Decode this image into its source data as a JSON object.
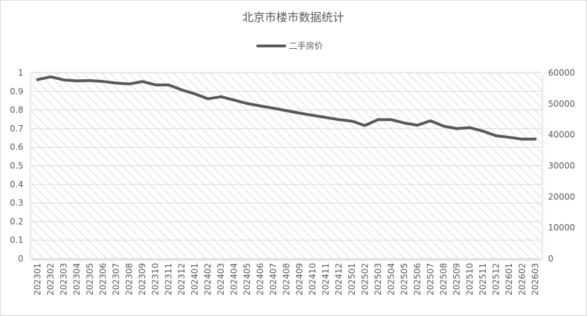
{
  "chart_data": {
    "type": "line",
    "title": "北京市楼市数据统计",
    "legend": {
      "position": "top",
      "entries": [
        "二手房价"
      ]
    },
    "grid": true,
    "x": [
      "202301",
      "202302",
      "202303",
      "202304",
      "202305",
      "202306",
      "202307",
      "202308",
      "202309",
      "202310",
      "202311",
      "202312",
      "202401",
      "202402",
      "202403",
      "202404",
      "202405",
      "202406",
      "202407",
      "202408",
      "202409",
      "202410",
      "202411",
      "202412",
      "202501",
      "202502",
      "202503",
      "202504",
      "202505",
      "202506",
      "202507",
      "202508",
      "202509",
      "202510",
      "202511",
      "202512",
      "202601",
      "202602",
      "202603"
    ],
    "y_left": {
      "ticks": [
        "0",
        "0.1",
        "0.2",
        "0.3",
        "0.4",
        "0.5",
        "0.6",
        "0.7",
        "0.8",
        "0.9",
        "1"
      ],
      "lim": [
        0,
        1
      ]
    },
    "y_right": {
      "ticks": [
        "0",
        "10000",
        "20000",
        "30000",
        "40000",
        "50000",
        "60000"
      ],
      "lim": [
        0,
        60000
      ]
    },
    "series": [
      {
        "name": "二手房价",
        "axis": "right",
        "color": "#595959",
        "values": [
          57800,
          58700,
          57700,
          57400,
          57500,
          57200,
          56700,
          56400,
          57200,
          56100,
          56100,
          54500,
          53200,
          51600,
          52300,
          51200,
          50100,
          49300,
          48600,
          47800,
          47000,
          46300,
          45600,
          44900,
          44400,
          43000,
          44900,
          44900,
          43800,
          43100,
          44500,
          42800,
          42000,
          42300,
          41200,
          39700,
          39200,
          38600,
          38600
        ]
      }
    ]
  }
}
